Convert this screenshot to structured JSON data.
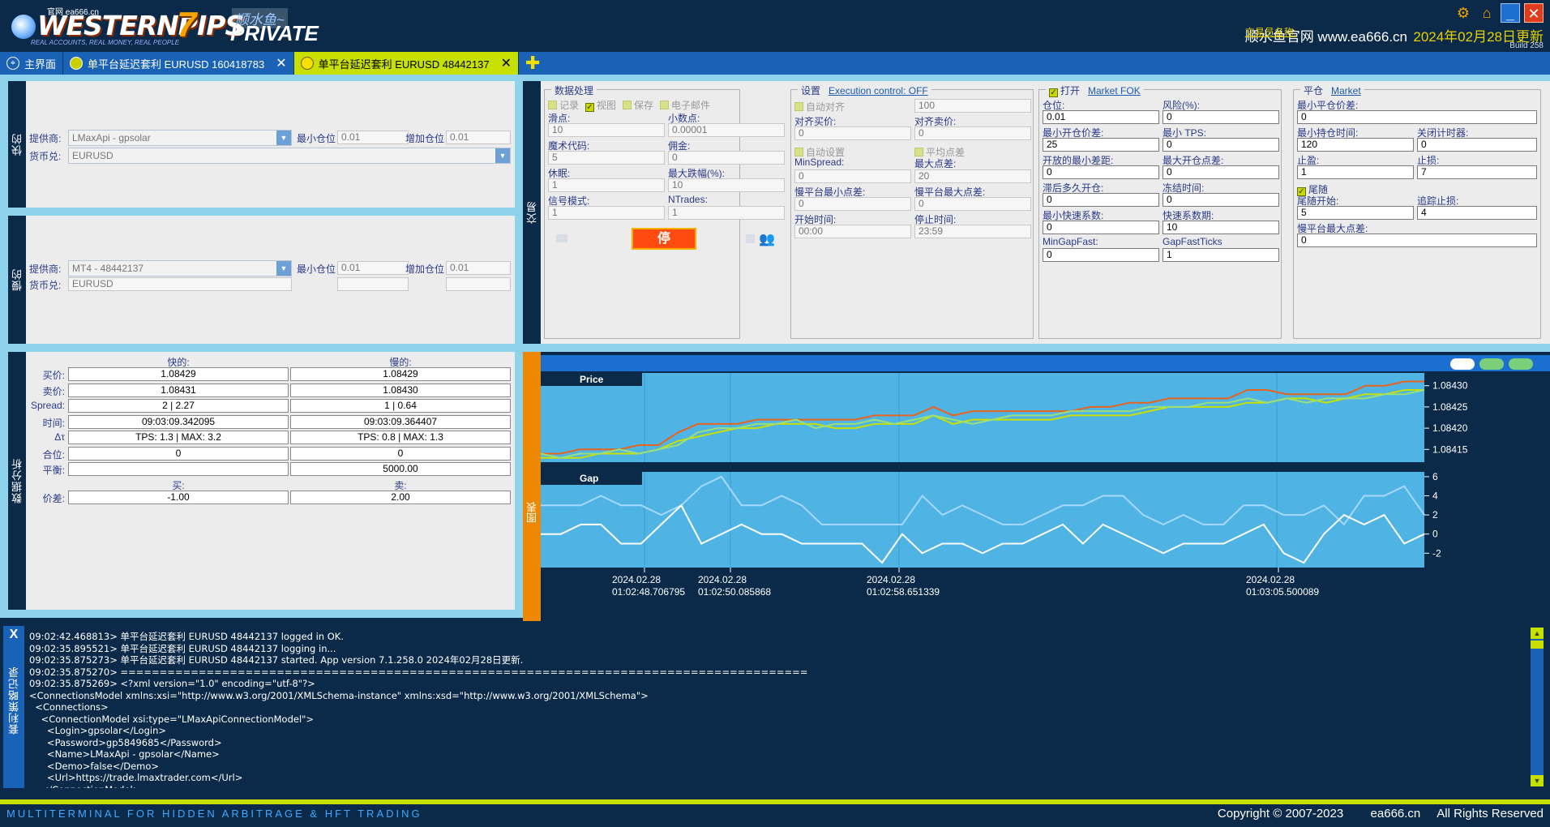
{
  "header": {
    "watermark": "官网 ea666.cn",
    "brand": "WESTERNPIPS",
    "seven": "7",
    "private": "PRIVATE",
    "brand_cn": "顺水鱼~",
    "tagline": "REAL ACCOUNTS, REAL MONEY, REAL PEOPLE",
    "trader_label": "交易员名称:",
    "trader_name": "顺水鱼官网 www.ea666.cn",
    "update": "2024年02月28日更新",
    "build": "Build 258"
  },
  "tabs": [
    {
      "label": "主界面"
    },
    {
      "label": "单平台延迟套利 EURUSD 160418783"
    },
    {
      "label": "单平台延迟套利 EURUSD 48442137"
    }
  ],
  "fast": {
    "side_label": "快的",
    "provider_label": "提供商:",
    "provider_value": "LMaxApi - gpsolar",
    "min_lot_label": "最小仓位",
    "min_lot_value": "0.01",
    "step_lot_label": "增加仓位",
    "step_lot_value": "0.01",
    "pair_label": "货币兑:",
    "pair_value": "EURUSD"
  },
  "slow": {
    "side_label": "慢的",
    "provider_label": "提供商:",
    "provider_value": "MT4 - 48442137",
    "min_lot_label": "最小仓位",
    "min_lot_value": "0.01",
    "step_lot_label": "增加仓位",
    "step_lot_value": "0.01",
    "pair_label": "货币兑:",
    "pair_value": "EURUSD"
  },
  "trade": {
    "side_label": "交易",
    "data_group": {
      "title": "数据处理",
      "chk_log": "记录",
      "chk_view": "视图",
      "chk_save": "保存",
      "chk_email": "电子邮件",
      "slippage_label": "滑点:",
      "slippage_value": "10",
      "decimals_label": "小数点:",
      "decimals_value": "0.00001",
      "magic_label": "魔术代码:",
      "magic_value": "5",
      "commission_label": "佣金:",
      "commission_value": "0",
      "sleep_label": "休眠:",
      "sleep_value": "1",
      "maxdrop_label": "最大跌幅(%):",
      "maxdrop_value": "10",
      "signal_label": "信号模式:",
      "signal_value": "1",
      "ntrades_label": "NTrades:",
      "ntrades_value": "1",
      "stop_label": "停"
    },
    "settings_group": {
      "title": "设置",
      "link": "Execution control: OFF",
      "chk_autoalign": "自动对齐",
      "autoalign_value": "100",
      "align_buy_label": "对齐买价:",
      "align_buy_value": "0",
      "align_sell_label": "对齐卖价:",
      "align_sell_value": "0",
      "chk_autoset": "自动设置",
      "chk_avgpoint": "平均点差",
      "minspread_label": "MinSpread:",
      "minspread_value": "0",
      "maxspread_label": "最大点差:",
      "maxspread_value": "20",
      "slow_min_label": "慢平台最小点差:",
      "slow_min_value": "0",
      "slow_max_label": "慢平台最大点差:",
      "slow_max_value": "0",
      "start_label": "开始时间:",
      "start_value": "00:00",
      "stop_label": "停止时间:",
      "stop_value": "23:59"
    },
    "open_group": {
      "title": "打开",
      "link": "Market FOK",
      "lot_label": "仓位:",
      "lot_value": "0.01",
      "risk_label": "风险(%):",
      "risk_value": "0",
      "min_open_gap_label": "最小开仓价差:",
      "min_open_gap_value": "25",
      "min_tps_label": "最小 TPS:",
      "min_tps_value": "0",
      "open_min_spread_label": "开放的最小差距:",
      "open_min_spread_value": "0",
      "max_open_spread_label": "最大开仓点差:",
      "max_open_spread_value": "0",
      "delay_open_label": "滞后多久开仓:",
      "delay_open_value": "0",
      "freeze_label": "冻结时间:",
      "freeze_value": "0",
      "min_fast_label": "最小快速系数:",
      "min_fast_value": "0",
      "fast_period_label": "快速系数期:",
      "fast_period_value": "10",
      "mingapfast_label": "MinGapFast:",
      "mingapfast_value": "0",
      "gapfastticks_label": "GapFastTicks",
      "gapfastticks_value": "1"
    },
    "close_group": {
      "title": "平仓",
      "link": "Market",
      "min_close_gap_label": "最小平仓价差:",
      "min_close_gap_value": "0",
      "min_hold_label": "最小持仓时间:",
      "min_hold_value": "120",
      "close_timer_label": "关闭计时器:",
      "close_timer_value": "0",
      "tp_label": "止盈:",
      "tp_value": "1",
      "sl_label": "止损:",
      "sl_value": "7",
      "chk_trailing": "尾随",
      "trail_start_label": "尾随开始:",
      "trail_start_value": "5",
      "trail_stop_label": "追踪止损:",
      "trail_stop_value": "4",
      "slow_max_label": "慢平台最大点差:",
      "slow_max_value": "0"
    }
  },
  "analysis": {
    "side_label": "数据分析",
    "col_fast": "快的:",
    "col_slow": "慢的:",
    "rows": [
      {
        "label": "买价:",
        "fast": "1.08429",
        "slow": "1.08429"
      },
      {
        "label": "卖价:",
        "fast": "1.08431",
        "slow": "1.08430"
      },
      {
        "label": "Spread:",
        "fast": "2 | 2.27",
        "slow": "1 | 0.64"
      },
      {
        "label": "时间:",
        "fast": "09:03:09.342095",
        "slow": "09:03:09.364407"
      },
      {
        "label": "Δτ",
        "fast": "TPS: 1.3 | MAX: 3.2",
        "slow": "TPS: 0.8 | MAX: 1.3"
      },
      {
        "label": "合位:",
        "fast": "0",
        "slow": "0"
      },
      {
        "label": "平衡:",
        "fast": "",
        "slow": "5000.00"
      }
    ],
    "col_buy": "买:",
    "col_sell": "卖:",
    "gap_label": "价差:",
    "gap_buy": "-1.00",
    "gap_sell": "2.00"
  },
  "chart_data": [
    {
      "type": "line",
      "title": "Price",
      "side_label": "图表",
      "ylim": [
        1.08412,
        1.08433
      ],
      "yticks": [
        "1.08430",
        "1.08425",
        "1.08420",
        "1.08415"
      ],
      "ytick_values": [
        1.0843,
        1.08425,
        1.0842,
        1.08415
      ],
      "series": [
        {
          "color": "#e8641c",
          "values": [
            1.08414,
            1.08414,
            1.08415,
            1.08415,
            1.08415,
            1.08416,
            1.08416,
            1.08419,
            1.08421,
            1.08421,
            1.08421,
            1.08422,
            1.08422,
            1.08422,
            1.08422,
            1.08422,
            1.08422,
            1.08423,
            1.08423,
            1.08423,
            1.08425,
            1.08423,
            1.08424,
            1.08424,
            1.08424,
            1.08424,
            1.08424,
            1.08424,
            1.08425,
            1.08425,
            1.08426,
            1.08426,
            1.08427,
            1.08427,
            1.08427,
            1.08427,
            1.08429,
            1.08429,
            1.08428,
            1.08428,
            1.08428,
            1.08428,
            1.0843,
            1.0843,
            1.08431,
            1.08431
          ]
        },
        {
          "color": "#c8e000",
          "values": [
            1.08413,
            1.08413,
            1.08413,
            1.08414,
            1.08414,
            1.08414,
            1.08415,
            1.08417,
            1.08418,
            1.08419,
            1.0842,
            1.0842,
            1.08421,
            1.08421,
            1.08421,
            1.0842,
            1.0842,
            1.08421,
            1.08421,
            1.08421,
            1.08423,
            1.08421,
            1.08422,
            1.08422,
            1.08422,
            1.08422,
            1.08422,
            1.08423,
            1.08423,
            1.08423,
            1.08423,
            1.08424,
            1.08425,
            1.08425,
            1.08425,
            1.08425,
            1.08426,
            1.08426,
            1.08427,
            1.08427,
            1.08426,
            1.08427,
            1.08428,
            1.08428,
            1.08429,
            1.08429
          ]
        },
        {
          "color": "#9ae07a",
          "values": [
            1.08414,
            1.08413,
            1.08414,
            1.08414,
            1.08415,
            1.08414,
            1.08415,
            1.08416,
            1.08419,
            1.0842,
            1.0842,
            1.08421,
            1.08421,
            1.08422,
            1.0842,
            1.08421,
            1.08421,
            1.08422,
            1.08421,
            1.08422,
            1.08423,
            1.08422,
            1.08421,
            1.08422,
            1.08423,
            1.08423,
            1.08423,
            1.08424,
            1.08424,
            1.08424,
            1.08424,
            1.08425,
            1.08425,
            1.08425,
            1.08426,
            1.08426,
            1.08427,
            1.08426,
            1.08427,
            1.08426,
            1.08427,
            1.08427,
            1.08427,
            1.08428,
            1.08428,
            1.08429
          ]
        }
      ]
    },
    {
      "type": "line",
      "title": "Gap",
      "ylim": [
        -3.5,
        6.5
      ],
      "yticks": [
        "6",
        "4",
        "2",
        "0",
        "-2"
      ],
      "ytick_values": [
        6,
        4,
        2,
        0,
        -2
      ],
      "series": [
        {
          "color": "#a8d8ff",
          "values": [
            3,
            3,
            3,
            4,
            3,
            3,
            2,
            3,
            5,
            6,
            3,
            3,
            4,
            3,
            1,
            1,
            1,
            1,
            1,
            4,
            2,
            3,
            2,
            1,
            1,
            2,
            3,
            3,
            4,
            4,
            2,
            1,
            2,
            1,
            1,
            3,
            3,
            2,
            2,
            3,
            1,
            4,
            4,
            5,
            2
          ]
        },
        {
          "color": "#ffffff",
          "values": [
            0,
            0,
            1,
            1,
            -1,
            -1,
            1,
            3,
            -1,
            0,
            1,
            0,
            0,
            -1,
            -1,
            -1,
            -1,
            -3,
            0,
            -2,
            -1,
            -1,
            -2,
            -1,
            -1,
            0,
            1,
            -1,
            1,
            0,
            -1,
            -2,
            -1,
            -1,
            -1,
            0,
            1,
            -2,
            -3,
            0,
            2,
            1,
            2,
            -1,
            0
          ]
        }
      ],
      "x_labels": [
        {
          "date": "2024.02.28",
          "time": "01:02:48.706795"
        },
        {
          "date": "2024.02.28",
          "time": "01:02:50.085868"
        },
        {
          "date": "2024.02.28",
          "time": "01:02:58.651339"
        },
        {
          "date": "2024.02.28",
          "time": "01:03:05.500089"
        }
      ]
    }
  ],
  "log": {
    "side_label": "套利策略记录",
    "close": "X",
    "lines": [
      "09:02:42.468813> 单平台延迟套利 EURUSD 48442137 logged in OK.",
      "09:02:35.895521> 单平台延迟套利 EURUSD 48442137 logging in...",
      "09:02:35.875273> 单平台延迟套利 EURUSD 48442137 started. App version 7.1.258.0 2024年02月28日更新.",
      "09:02:35.875270> ========================================================================================",
      "09:02:35.875269> <?xml version=\"1.0\" encoding=\"utf-8\"?>",
      "<ConnectionsModel xmlns:xsi=\"http://www.w3.org/2001/XMLSchema-instance\" xmlns:xsd=\"http://www.w3.org/2001/XMLSchema\">",
      "  <Connections>",
      "    <ConnectionModel xsi:type=\"LMaxApiConnectionModel\">",
      "      <Login>gpsolar</Login>",
      "      <Password>gp5849685</Password>",
      "      <Name>LMaxApi - gpsolar</Name>",
      "      <Demo>false</Demo>",
      "      <Url>https://trade.lmaxtrader.com</Url>",
      "    </ConnectionModel>"
    ]
  },
  "footer": {
    "left": "MULTITERMINAL FOR HIDDEN ARBITRAGE & HFT TRADING",
    "right": "Copyright © 2007-2023        ea666.cn     All Rights Reserved"
  },
  "colors": {
    "navy": "#0b2a4a",
    "lime": "#c8e000",
    "blue": "#1a62b5",
    "orange": "#ee8800",
    "stop": "#ff4a10"
  }
}
